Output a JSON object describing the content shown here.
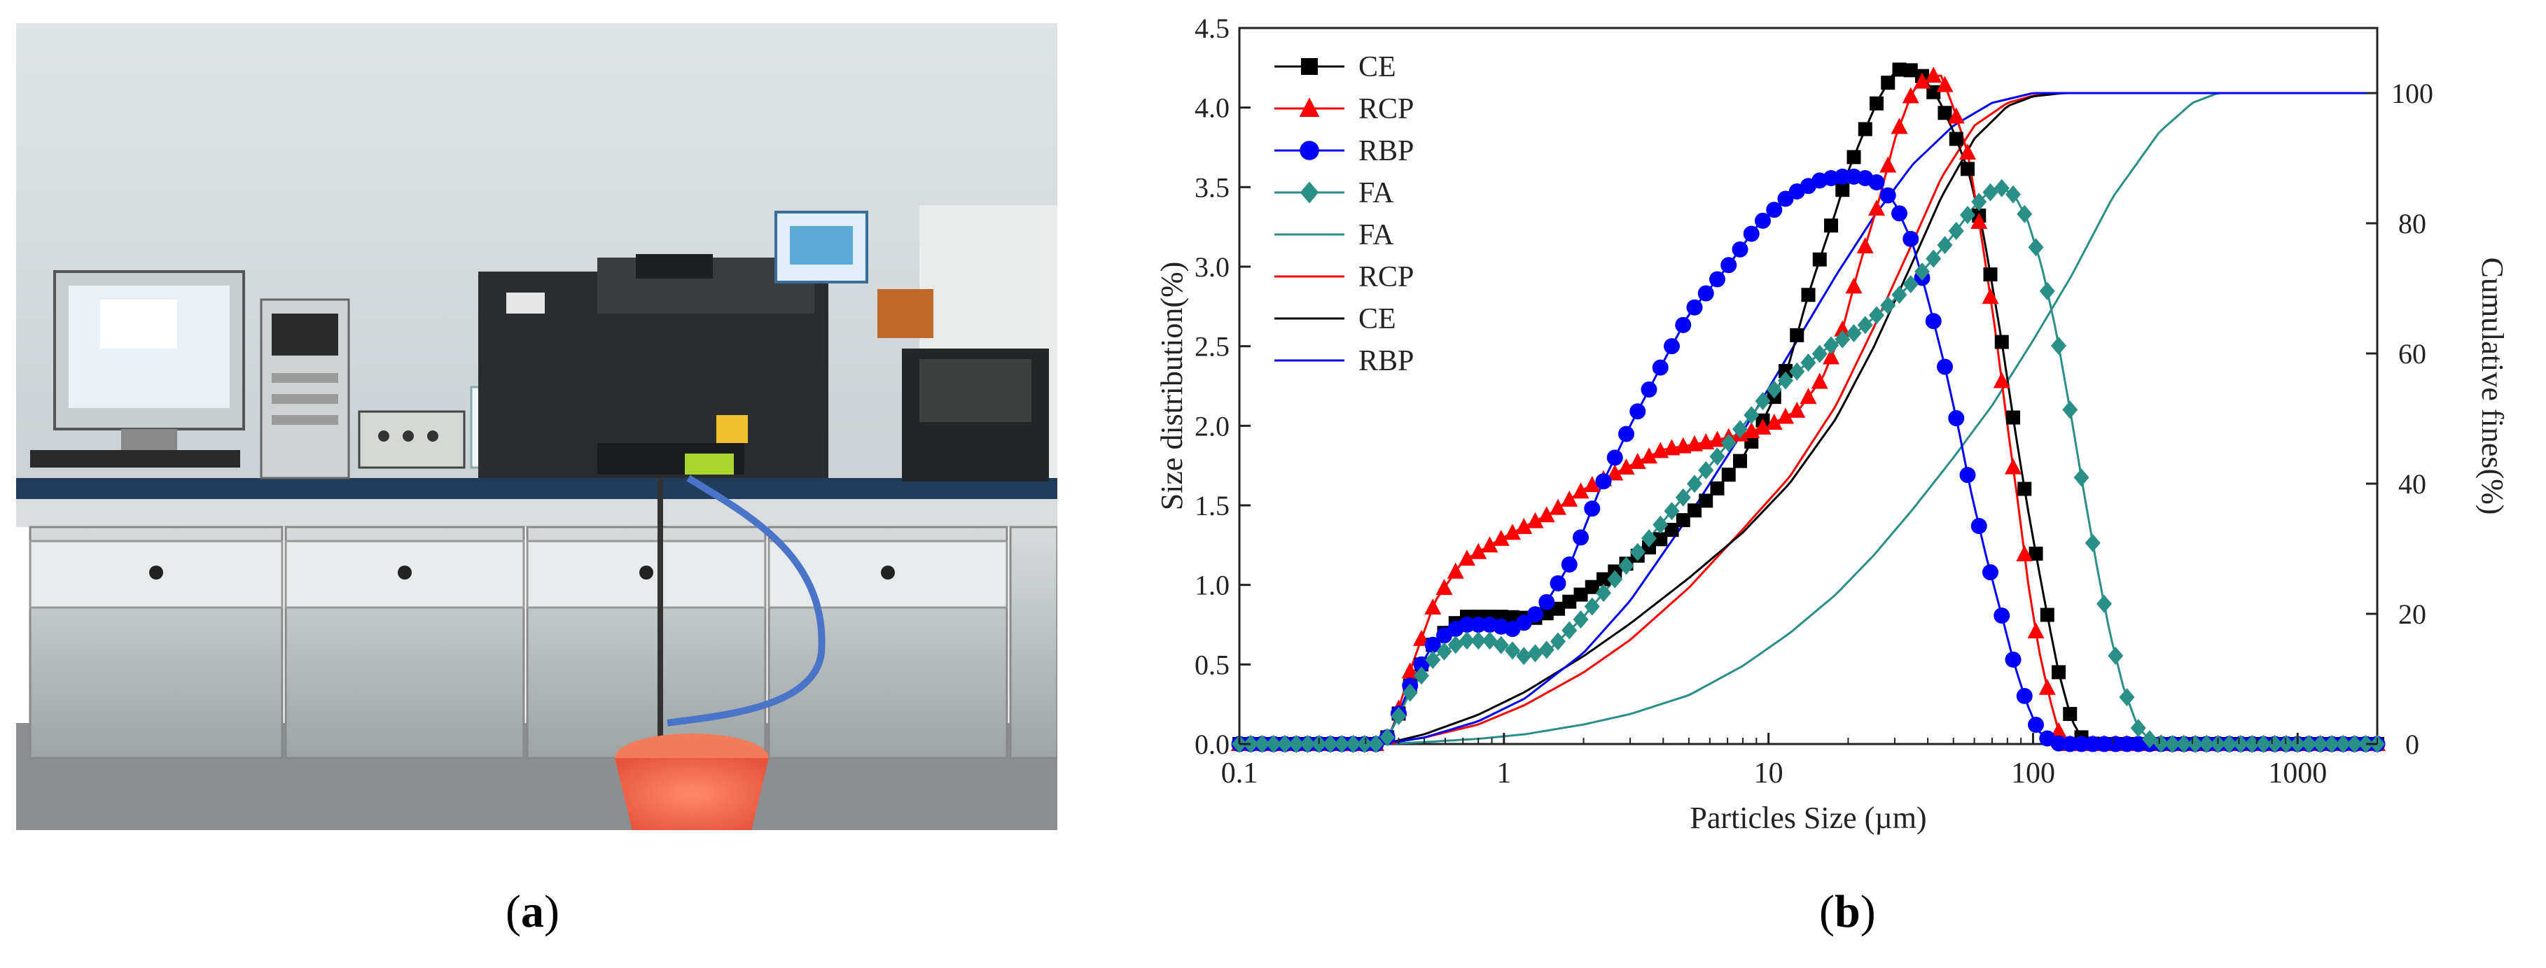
{
  "panel_a": {
    "caption": {
      "open": "(",
      "letter": "a",
      "close": ")"
    },
    "image_description_icon": "laboratory-photo"
  },
  "panel_b": {
    "caption": {
      "open": "(",
      "letter": "b",
      "close": ")"
    }
  },
  "colors": {
    "CE": "#000000",
    "RCP": "#ff0000",
    "RBP": "#0000ff",
    "FA": "#2a8f86"
  },
  "chart_data": {
    "type": "line",
    "xlabel": "Particles Size (µm)",
    "ylabel_left": "Size distribution(%)",
    "ylabel_right": "Cumulative fines(%)",
    "xscale": "log",
    "xlim": [
      0.1,
      2000
    ],
    "x_ticks": [
      {
        "value": 0.1,
        "label": "0.1"
      },
      {
        "value": 1,
        "label": "1"
      },
      {
        "value": 10,
        "label": "10"
      },
      {
        "value": 100,
        "label": "100"
      },
      {
        "value": 1000,
        "label": "1000"
      }
    ],
    "ylim_left": [
      0,
      4.5
    ],
    "y_ticks_left": [
      "0.0",
      "0.5",
      "1.0",
      "1.5",
      "2.0",
      "2.5",
      "3.0",
      "3.5",
      "4.0",
      "4.5"
    ],
    "ylim_right": [
      0,
      110
    ],
    "y_ticks_right": [
      "0",
      "20",
      "40",
      "60",
      "80",
      "100"
    ],
    "legend_position": "top-left",
    "legend": [
      {
        "label": "CE",
        "series": "CE",
        "kind": "marker-line",
        "marker": "square"
      },
      {
        "label": "RCP",
        "series": "RCP",
        "kind": "marker-line",
        "marker": "triangle"
      },
      {
        "label": "RBP",
        "series": "RBP",
        "kind": "marker-line",
        "marker": "circle"
      },
      {
        "label": "FA",
        "series": "FA",
        "kind": "marker-line",
        "marker": "diamond"
      },
      {
        "label": "FA",
        "series": "FA",
        "kind": "line"
      },
      {
        "label": "RCP",
        "series": "RCP",
        "kind": "line"
      },
      {
        "label": "CE",
        "series": "CE",
        "kind": "line"
      },
      {
        "label": "RBP",
        "series": "RBP",
        "kind": "line"
      }
    ],
    "distribution_series": [
      {
        "name": "CE",
        "marker": "square",
        "axis": "left",
        "points": [
          [
            0.1,
            0
          ],
          [
            0.35,
            0
          ],
          [
            0.38,
            0.1
          ],
          [
            0.45,
            0.4
          ],
          [
            0.55,
            0.65
          ],
          [
            0.7,
            0.8
          ],
          [
            1.0,
            0.8
          ],
          [
            1.3,
            0.79
          ],
          [
            1.6,
            0.85
          ],
          [
            2.0,
            0.95
          ],
          [
            3.0,
            1.15
          ],
          [
            4.0,
            1.3
          ],
          [
            6.0,
            1.55
          ],
          [
            8.0,
            1.8
          ],
          [
            10.0,
            2.1
          ],
          [
            12.0,
            2.4
          ],
          [
            14.0,
            2.8
          ],
          [
            16.0,
            3.1
          ],
          [
            18.0,
            3.35
          ],
          [
            20.0,
            3.6
          ],
          [
            23.0,
            3.85
          ],
          [
            26.0,
            4.05
          ],
          [
            30.0,
            4.23
          ],
          [
            33.0,
            4.25
          ],
          [
            38.0,
            4.2
          ],
          [
            44.0,
            4.05
          ],
          [
            50.0,
            3.85
          ],
          [
            57.0,
            3.6
          ],
          [
            65.0,
            3.2
          ],
          [
            75.0,
            2.6
          ],
          [
            85.0,
            2.0
          ],
          [
            95.0,
            1.5
          ],
          [
            105.0,
            1.1
          ],
          [
            115.0,
            0.75
          ],
          [
            125.0,
            0.45
          ],
          [
            140.0,
            0.15
          ],
          [
            155.0,
            0.02
          ],
          [
            170.0,
            0
          ],
          [
            2000,
            0
          ]
        ]
      },
      {
        "name": "RCP",
        "marker": "triangle",
        "axis": "left",
        "points": [
          [
            0.1,
            0
          ],
          [
            0.35,
            0
          ],
          [
            0.38,
            0.1
          ],
          [
            0.45,
            0.5
          ],
          [
            0.55,
            0.9
          ],
          [
            0.7,
            1.15
          ],
          [
            1.0,
            1.3
          ],
          [
            1.5,
            1.45
          ],
          [
            2.0,
            1.6
          ],
          [
            3.0,
            1.75
          ],
          [
            4.0,
            1.85
          ],
          [
            6.0,
            1.9
          ],
          [
            8.0,
            1.95
          ],
          [
            10.0,
            2.0
          ],
          [
            13.0,
            2.1
          ],
          [
            16.0,
            2.3
          ],
          [
            19.0,
            2.6
          ],
          [
            22.0,
            3.0
          ],
          [
            26.0,
            3.4
          ],
          [
            30.0,
            3.8
          ],
          [
            35.0,
            4.1
          ],
          [
            40.0,
            4.2
          ],
          [
            45.0,
            4.2
          ],
          [
            50.0,
            4.0
          ],
          [
            57.0,
            3.7
          ],
          [
            65.0,
            3.1
          ],
          [
            72.0,
            2.6
          ],
          [
            80.0,
            2.0
          ],
          [
            88.0,
            1.5
          ],
          [
            96.0,
            1.0
          ],
          [
            105.0,
            0.6
          ],
          [
            115.0,
            0.3
          ],
          [
            125.0,
            0.08
          ],
          [
            135.0,
            0
          ],
          [
            2000,
            0
          ]
        ]
      },
      {
        "name": "RBP",
        "marker": "circle",
        "axis": "left",
        "points": [
          [
            0.1,
            0
          ],
          [
            0.35,
            0
          ],
          [
            0.38,
            0.1
          ],
          [
            0.45,
            0.4
          ],
          [
            0.55,
            0.65
          ],
          [
            0.7,
            0.75
          ],
          [
            0.9,
            0.75
          ],
          [
            1.1,
            0.72
          ],
          [
            1.4,
            0.85
          ],
          [
            1.8,
            1.15
          ],
          [
            2.3,
            1.6
          ],
          [
            3.0,
            2.0
          ],
          [
            4.0,
            2.4
          ],
          [
            5.0,
            2.7
          ],
          [
            7.0,
            3.0
          ],
          [
            9.0,
            3.25
          ],
          [
            12.0,
            3.45
          ],
          [
            16.0,
            3.55
          ],
          [
            20.0,
            3.57
          ],
          [
            25.0,
            3.55
          ],
          [
            30.0,
            3.4
          ],
          [
            35.0,
            3.15
          ],
          [
            40.0,
            2.8
          ],
          [
            46.0,
            2.4
          ],
          [
            52.0,
            2.0
          ],
          [
            58.0,
            1.6
          ],
          [
            66.0,
            1.2
          ],
          [
            75.0,
            0.85
          ],
          [
            85.0,
            0.5
          ],
          [
            95.0,
            0.25
          ],
          [
            105.0,
            0.08
          ],
          [
            118.0,
            0.01
          ],
          [
            130.0,
            0
          ],
          [
            2000,
            0
          ]
        ]
      },
      {
        "name": "FA",
        "marker": "diamond",
        "axis": "left",
        "points": [
          [
            0.1,
            0
          ],
          [
            0.35,
            0
          ],
          [
            0.38,
            0.1
          ],
          [
            0.45,
            0.35
          ],
          [
            0.55,
            0.55
          ],
          [
            0.7,
            0.65
          ],
          [
            0.9,
            0.65
          ],
          [
            1.2,
            0.55
          ],
          [
            1.5,
            0.6
          ],
          [
            2.0,
            0.8
          ],
          [
            3.0,
            1.15
          ],
          [
            4.0,
            1.4
          ],
          [
            6.0,
            1.75
          ],
          [
            8.0,
            2.0
          ],
          [
            10.0,
            2.2
          ],
          [
            13.0,
            2.35
          ],
          [
            17.0,
            2.5
          ],
          [
            22.0,
            2.6
          ],
          [
            28.0,
            2.75
          ],
          [
            35.0,
            2.9
          ],
          [
            42.0,
            3.05
          ],
          [
            50.0,
            3.2
          ],
          [
            58.0,
            3.35
          ],
          [
            66.0,
            3.45
          ],
          [
            75.0,
            3.5
          ],
          [
            85.0,
            3.45
          ],
          [
            95.0,
            3.3
          ],
          [
            108.0,
            3.0
          ],
          [
            122.0,
            2.6
          ],
          [
            138.0,
            2.1
          ],
          [
            155.0,
            1.6
          ],
          [
            175.0,
            1.1
          ],
          [
            195.0,
            0.7
          ],
          [
            220.0,
            0.35
          ],
          [
            250.0,
            0.1
          ],
          [
            280.0,
            0.02
          ],
          [
            310.0,
            0
          ],
          [
            2000,
            0
          ]
        ]
      }
    ],
    "cumulative_series": [
      {
        "name": "FA",
        "axis": "right",
        "points": [
          [
            0.1,
            0
          ],
          [
            0.35,
            0
          ],
          [
            0.5,
            0.3
          ],
          [
            0.8,
            0.8
          ],
          [
            1.2,
            1.5
          ],
          [
            2.0,
            3.0
          ],
          [
            3.0,
            4.6
          ],
          [
            5.0,
            7.5
          ],
          [
            8.0,
            12.0
          ],
          [
            12.0,
            17.0
          ],
          [
            18.0,
            23.0
          ],
          [
            25.0,
            29.0
          ],
          [
            35.0,
            36.0
          ],
          [
            50.0,
            44.0
          ],
          [
            70.0,
            52.0
          ],
          [
            100.0,
            62.0
          ],
          [
            140.0,
            72.0
          ],
          [
            200.0,
            84.0
          ],
          [
            300.0,
            94.0
          ],
          [
            400.0,
            98.5
          ],
          [
            500.0,
            100
          ],
          [
            2000,
            100
          ]
        ]
      },
      {
        "name": "RCP",
        "axis": "right",
        "points": [
          [
            0.1,
            0
          ],
          [
            0.35,
            0
          ],
          [
            0.5,
            1.0
          ],
          [
            0.8,
            3.0
          ],
          [
            1.2,
            6.0
          ],
          [
            2.0,
            11.0
          ],
          [
            3.0,
            16.0
          ],
          [
            5.0,
            24.0
          ],
          [
            8.0,
            33.0
          ],
          [
            12.0,
            41.0
          ],
          [
            18.0,
            52.0
          ],
          [
            25.0,
            64.0
          ],
          [
            35.0,
            77.0
          ],
          [
            45.0,
            87.0
          ],
          [
            60.0,
            95.0
          ],
          [
            80.0,
            98.5
          ],
          [
            100.0,
            99.6
          ],
          [
            130.0,
            100
          ],
          [
            2000,
            100
          ]
        ]
      },
      {
        "name": "CE",
        "axis": "right",
        "points": [
          [
            0.1,
            0
          ],
          [
            0.35,
            0
          ],
          [
            0.5,
            1.5
          ],
          [
            0.8,
            4.5
          ],
          [
            1.2,
            8.0
          ],
          [
            2.0,
            13.5
          ],
          [
            3.0,
            18.5
          ],
          [
            5.0,
            25.5
          ],
          [
            8.0,
            32.5
          ],
          [
            12.0,
            40.0
          ],
          [
            18.0,
            50.0
          ],
          [
            25.0,
            61.0
          ],
          [
            35.0,
            74.0
          ],
          [
            45.0,
            84.0
          ],
          [
            60.0,
            93.0
          ],
          [
            80.0,
            98.0
          ],
          [
            100.0,
            99.5
          ],
          [
            130.0,
            100
          ],
          [
            2000,
            100
          ]
        ]
      },
      {
        "name": "RBP",
        "axis": "right",
        "points": [
          [
            0.1,
            0
          ],
          [
            0.35,
            0
          ],
          [
            0.5,
            1.0
          ],
          [
            0.8,
            3.5
          ],
          [
            1.2,
            7.0
          ],
          [
            2.0,
            14.0
          ],
          [
            3.0,
            22.0
          ],
          [
            5.0,
            35.0
          ],
          [
            8.0,
            48.0
          ],
          [
            12.0,
            60.0
          ],
          [
            18.0,
            72.0
          ],
          [
            25.0,
            81.0
          ],
          [
            35.0,
            89.0
          ],
          [
            50.0,
            95.0
          ],
          [
            70.0,
            98.5
          ],
          [
            100.0,
            100
          ],
          [
            2000,
            100
          ]
        ]
      }
    ]
  }
}
